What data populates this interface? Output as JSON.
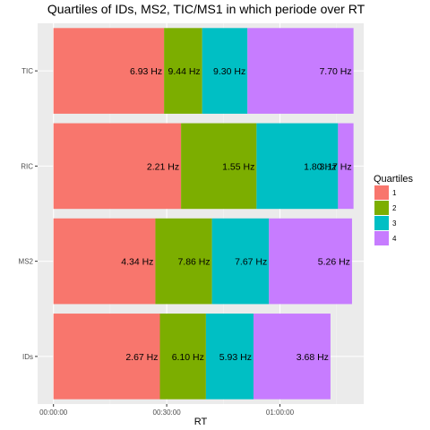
{
  "chart_data": {
    "type": "bar",
    "orientation": "horizontal",
    "stacked": true,
    "title": "Quartiles of IDs, MS2, TIC/MS1 in which periode over RT",
    "xlabel": "RT",
    "ylabel": "",
    "x_ticks": [
      {
        "value": 0,
        "label": "00:00:00"
      },
      {
        "value": 30,
        "label": "00:30:00"
      },
      {
        "value": 60,
        "label": "01:00:00"
      }
    ],
    "xlim": [
      -4.2,
      82.2
    ],
    "categories": [
      "TIC",
      "RIC",
      "MS2",
      "IDs"
    ],
    "legend": {
      "title": "Quartiles",
      "placement": "right",
      "entries": [
        "1",
        "2",
        "3",
        "4"
      ]
    },
    "colors": [
      "#F8766D",
      "#7CAE00",
      "#00BFC4",
      "#C77CFF"
    ],
    "grid": true,
    "series": [
      {
        "name": "1",
        "values": [
          29.3,
          33.8,
          27.0,
          28.2
        ],
        "labels": [
          "6.93  Hz",
          "2.21  Hz",
          "4.34  Hz",
          "2.67  Hz"
        ]
      },
      {
        "name": "2",
        "values": [
          10.1,
          20.0,
          15.0,
          12.2
        ],
        "labels": [
          "9.44  Hz",
          "1.55  Hz",
          "7.86  Hz",
          "6.10  Hz"
        ]
      },
      {
        "name": "3",
        "values": [
          12.0,
          21.6,
          15.1,
          12.6
        ],
        "labels": [
          "9.30  Hz",
          "1.80  Hz",
          "7.67  Hz",
          "5.93  Hz"
        ]
      },
      {
        "name": "4",
        "values": [
          28.1,
          4.1,
          22.0,
          20.4
        ],
        "labels": [
          "7.70  Hz",
          "3.17  Hz",
          "5.26  Hz",
          "3.68  Hz"
        ]
      }
    ]
  }
}
